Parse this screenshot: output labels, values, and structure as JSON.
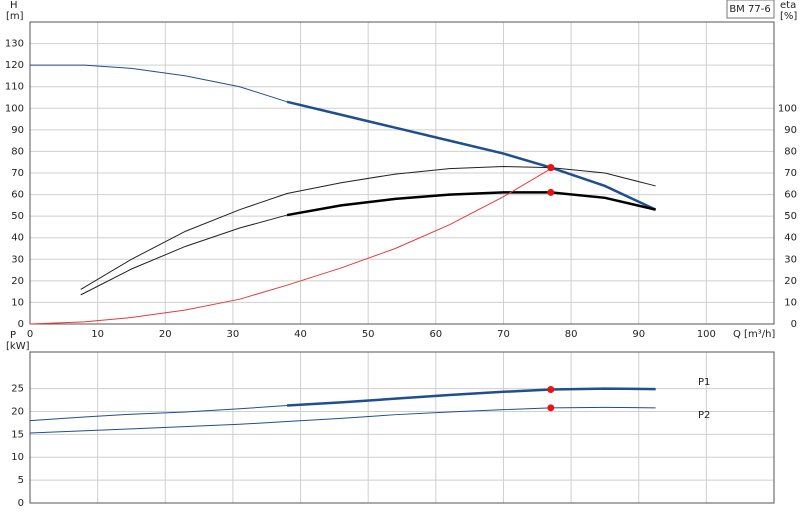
{
  "chart_data": [
    {
      "type": "line",
      "label_box": "BM 77-6",
      "y_label": "H",
      "y_unit": "[m]",
      "y2_label": "eta",
      "y2_unit": "[%]",
      "x_label": "Q [m³/h]",
      "xlim": [
        0,
        110
      ],
      "xticks": [
        0,
        10,
        20,
        30,
        40,
        50,
        60,
        70,
        80,
        90,
        100
      ],
      "ylim": [
        0,
        140
      ],
      "yticks": [
        0,
        10,
        20,
        30,
        40,
        50,
        60,
        70,
        80,
        90,
        100,
        110,
        120,
        130
      ],
      "y2lim": [
        0,
        140
      ],
      "y2ticks": [
        0,
        10,
        20,
        30,
        40,
        50,
        60,
        70,
        80,
        90,
        100
      ],
      "grid": true,
      "series": [
        {
          "color": "#1f4f8f",
          "width": 1,
          "x": [
            0,
            8,
            15,
            23,
            31,
            38
          ],
          "values": [
            120,
            120,
            118.5,
            115,
            110,
            103
          ]
        },
        {
          "color": "#1f4f8f",
          "width": 2.5,
          "x": [
            38,
            46,
            54,
            62,
            70,
            77,
            85,
            92.5
          ],
          "values": [
            103,
            97,
            91,
            85,
            79,
            72.5,
            64,
            53
          ]
        },
        {
          "color": "#222222",
          "width": 1,
          "axis": "y2",
          "x": [
            7.5,
            15,
            23,
            31,
            38,
            46,
            54,
            62,
            70,
            77,
            85,
            92.5
          ],
          "values": [
            16,
            30,
            43,
            53,
            60.5,
            65.5,
            69.5,
            72,
            73,
            72.5,
            70,
            64
          ]
        },
        {
          "color": "#222222",
          "width": 1,
          "axis": "y2",
          "x": [
            7.5,
            15,
            23,
            31,
            38
          ],
          "values": [
            13.5,
            25.5,
            36,
            44.5,
            50.5
          ]
        },
        {
          "color": "#000000",
          "width": 2.5,
          "axis": "y2",
          "x": [
            38,
            46,
            54,
            62,
            70,
            77,
            85,
            92.5
          ],
          "values": [
            50.5,
            55,
            58,
            60,
            61,
            61,
            58.5,
            53
          ]
        },
        {
          "color": "#e83a3a",
          "width": 1,
          "x": [
            0,
            8,
            15,
            23,
            31,
            38,
            46,
            54,
            62,
            70,
            77
          ],
          "values": [
            0,
            1,
            3,
            6.5,
            11.5,
            18,
            26,
            35,
            46,
            59,
            72
          ]
        }
      ],
      "markers": {
        "color": "#ee1111",
        "x": [
          77,
          77,
          77
        ],
        "values": [
          72.5,
          72.5,
          61
        ]
      }
    },
    {
      "type": "line",
      "y_label": "P",
      "y_unit": "[kW]",
      "xlim": [
        0,
        110
      ],
      "xticks": [
        0,
        10,
        20,
        30,
        40,
        50,
        60,
        70,
        80,
        90,
        100
      ],
      "ylim": [
        0,
        33
      ],
      "yticks": [
        0,
        5,
        10,
        15,
        20,
        25
      ],
      "grid": true,
      "series": [
        {
          "color": "#1f4f8f",
          "width": 1,
          "x": [
            0,
            8,
            15,
            23,
            31,
            38
          ],
          "values": [
            18,
            18.8,
            19.4,
            19.9,
            20.6,
            21.3
          ]
        },
        {
          "name": "P1",
          "color": "#1f4f8f",
          "width": 2.5,
          "x": [
            38,
            46,
            54,
            62,
            70,
            77,
            85,
            92.5
          ],
          "values": [
            21.3,
            22,
            22.8,
            23.6,
            24.3,
            24.8,
            25,
            24.9
          ]
        },
        {
          "name": "P2",
          "color": "#1f4f8f",
          "width": 1,
          "x": [
            0,
            15,
            31,
            38,
            46,
            54,
            62,
            70,
            77,
            85,
            92.5
          ],
          "values": [
            15.3,
            16.2,
            17.2,
            17.8,
            18.5,
            19.3,
            19.9,
            20.4,
            20.8,
            20.9,
            20.8
          ]
        }
      ],
      "markers": {
        "color": "#ee1111",
        "x": [
          77,
          77
        ],
        "values": [
          24.8,
          20.8
        ]
      }
    }
  ]
}
